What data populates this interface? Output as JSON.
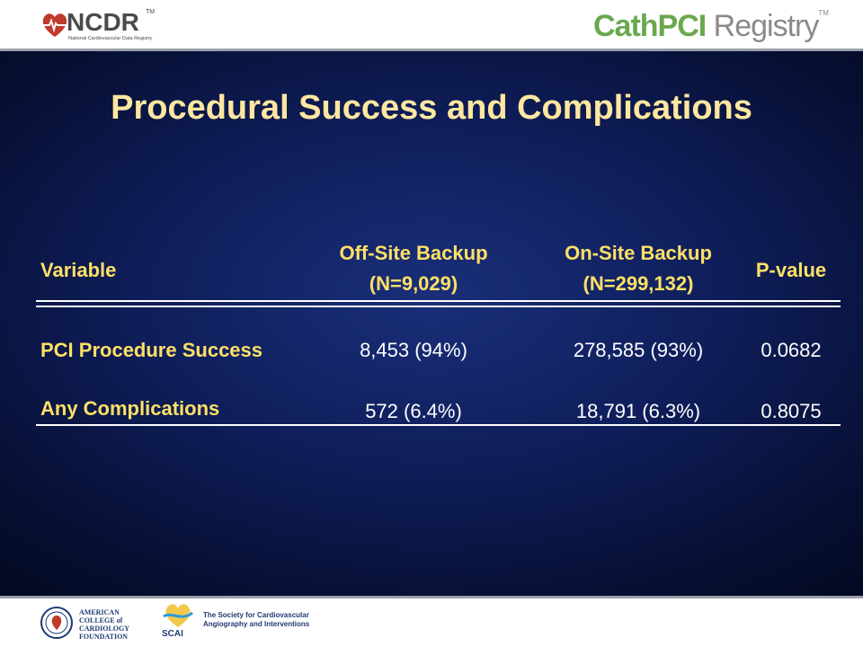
{
  "header": {
    "ncdr_wordmark": "NCDR",
    "ncdr_tm": "TM",
    "ncdr_subtitle": "National Cardiovascular Data Registry",
    "cathpci_part1": "CathPCI",
    "cathpci_part2": " Registry",
    "cathpci_tm": "TM"
  },
  "slide": {
    "title": "Procedural Success and Complications",
    "table": {
      "columns": [
        {
          "line1": "Variable",
          "line2": ""
        },
        {
          "line1": "Off-Site Backup",
          "line2": "(N=9,029)"
        },
        {
          "line1": "On-Site Backup",
          "line2": "(N=299,132)"
        },
        {
          "line1": "P-value",
          "line2": ""
        }
      ],
      "rows": [
        {
          "label": "PCI Procedure Success",
          "off_site": "8,453 (94%)",
          "on_site": "278,585 (93%)",
          "p_value": "0.0682"
        },
        {
          "label": "Any Complications",
          "off_site": "572 (6.4%)",
          "on_site": "18,791 (6.3%)",
          "p_value": "0.8075"
        }
      ]
    }
  },
  "footer": {
    "acc_line1": "AMERICAN",
    "acc_line2": "COLLEGE of",
    "acc_line3": "CARDIOLOGY",
    "acc_line4": "FOUNDATION",
    "scai_word": "SCAI",
    "scai_line1": "The Society for Cardiovascular",
    "scai_line2": "Angiography and Interventions"
  },
  "colors": {
    "title": "#ffe7a0",
    "header_text": "#ffe066",
    "cell_text": "#ffffff",
    "background_center": "#1a2f7a",
    "background_edge": "#040a24",
    "cathpci_green": "#6aa84f"
  }
}
